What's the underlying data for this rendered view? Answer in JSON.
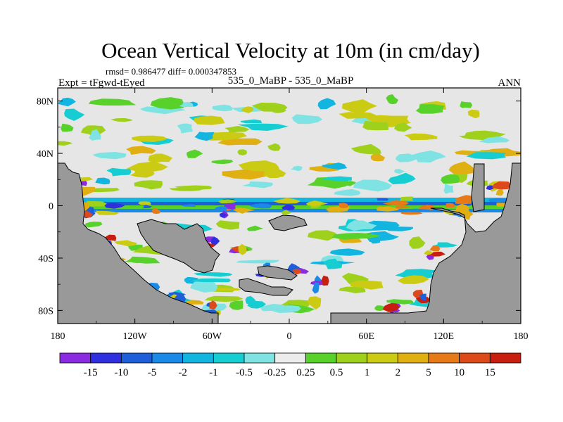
{
  "chart_data": {
    "type": "heatmap",
    "title": "Ocean Vertical Velocity at 10m (in cm/day)",
    "stats_line": "rmsd= 0.986477 diff= 0.000347853",
    "left_label": "Expt = tFgwd-tEyed",
    "center_label": "535_0_MaBP - 535_0_MaBP",
    "right_label": "ANN",
    "x_ticks": [
      {
        "lon": -180,
        "label": "180"
      },
      {
        "lon": -120,
        "label": "120W"
      },
      {
        "lon": -60,
        "label": "60W"
      },
      {
        "lon": 0,
        "label": "0"
      },
      {
        "lon": 60,
        "label": "60E"
      },
      {
        "lon": 120,
        "label": "120E"
      },
      {
        "lon": 180,
        "label": "180"
      }
    ],
    "y_ticks": [
      {
        "lat": 80,
        "label": "80N"
      },
      {
        "lat": 40,
        "label": "40N"
      },
      {
        "lat": 0,
        "label": "0"
      },
      {
        "lat": -40,
        "label": "40S"
      },
      {
        "lat": -80,
        "label": "80S"
      }
    ],
    "xlim": [
      -180,
      180
    ],
    "ylim": [
      -90,
      90
    ],
    "colorbar": {
      "levels": [
        "-15",
        "-10",
        "-5",
        "-2",
        "-1",
        "-0.5",
        "-0.25",
        "0.25",
        "0.5",
        "1",
        "2",
        "5",
        "10",
        "15"
      ],
      "colors": [
        "#8a2be2",
        "#2f2fe0",
        "#1e5ed8",
        "#1a8ae6",
        "#12b4e0",
        "#16cdd2",
        "#7fe3e3",
        "#ececec",
        "#58d22a",
        "#9fd11c",
        "#cccb14",
        "#e0b012",
        "#e67a18",
        "#dc4a1c",
        "#c81e0f"
      ]
    },
    "land_color": "#999999",
    "ocean_color": "#e6e6e6"
  }
}
